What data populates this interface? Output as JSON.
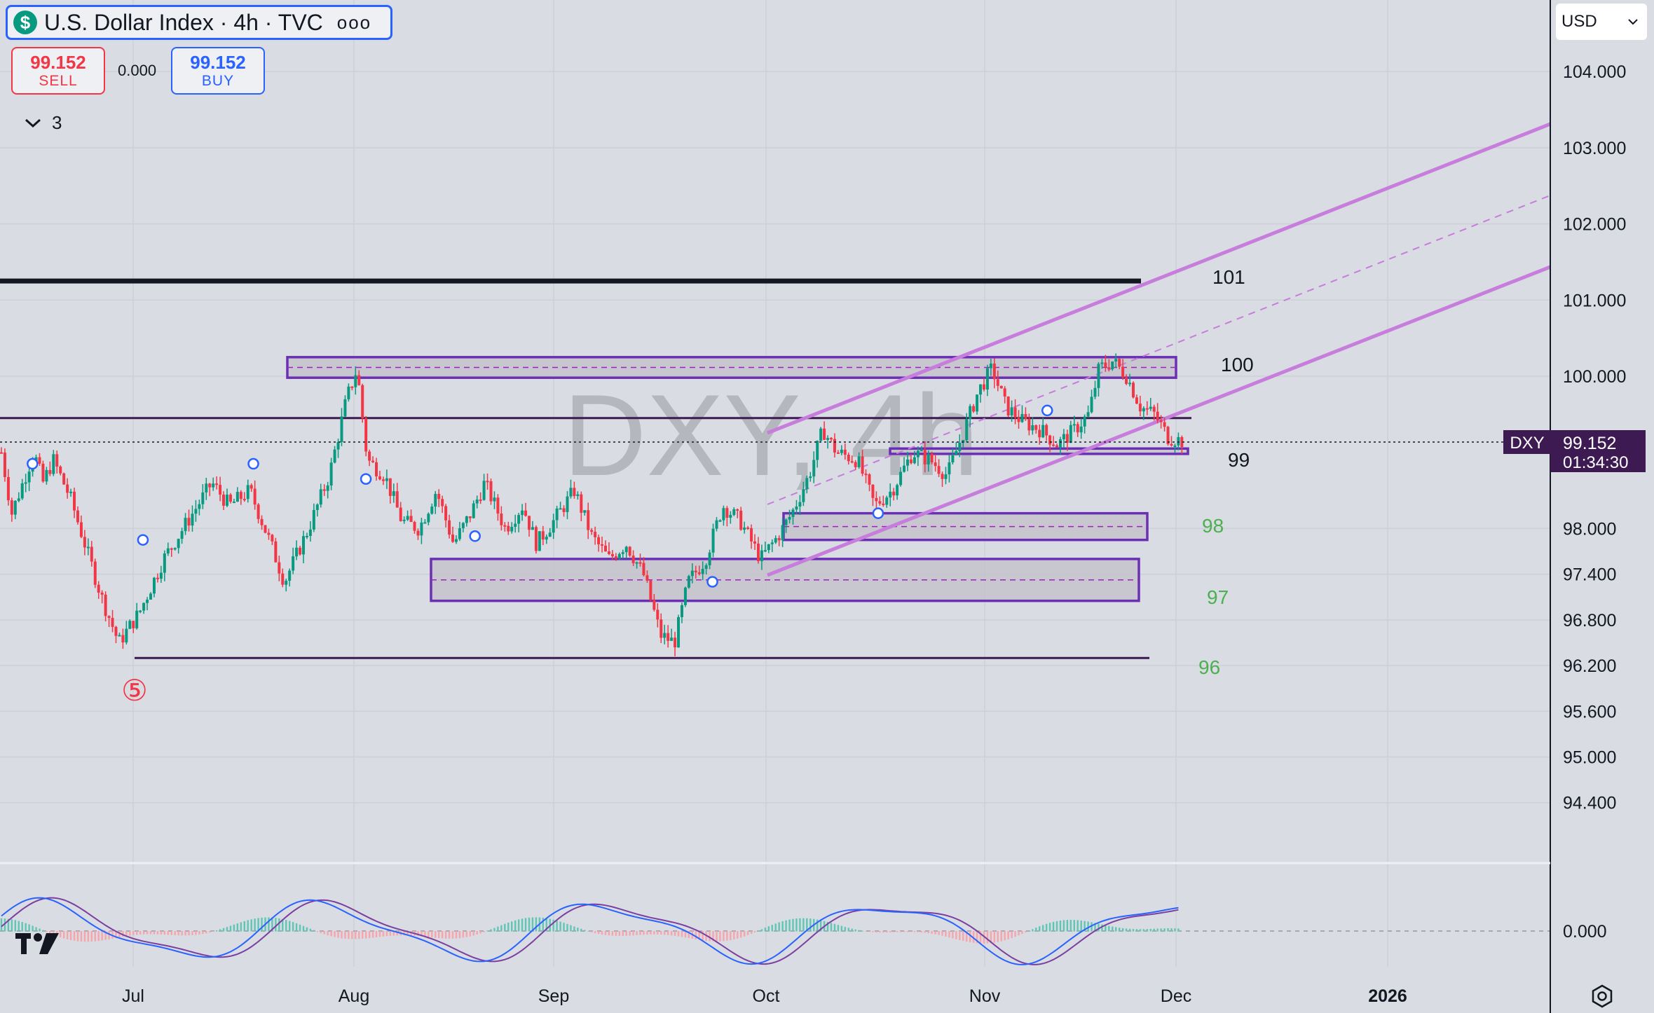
{
  "header": {
    "symbol_icon": "dollar-icon",
    "symbol_glyph": "$",
    "title": "U.S. Dollar Index · 4h · TVC",
    "more_glyph": "ooo"
  },
  "trade": {
    "sell_price": "99.152",
    "sell_label": "SELL",
    "spread": "0.000",
    "buy_price": "99.152",
    "buy_label": "BUY"
  },
  "indicators_toggle": {
    "icon": "chevron-down-icon",
    "count": "3"
  },
  "currency": "USD",
  "watermark": "DXY, 4h",
  "price_tag": {
    "symbol": "DXY",
    "price": "99.152",
    "countdown": "01:34:30"
  },
  "colors": {
    "background": "#d9dce2",
    "candle_up": "#089981",
    "candle_down": "#f23645",
    "zone_border": "#6b2fb3",
    "zone_fill": "#c4c2cb",
    "channel": "#c77ddb",
    "resistance": "#131722",
    "green_label": "#4caf50",
    "macd": "#2962ff",
    "signal": "#7b3fa0"
  },
  "elliott_label": "⑤",
  "chart_data": {
    "type": "candlestick",
    "timeframe": "4h",
    "ylim": [
      93.8,
      104.8
    ],
    "price_axis_labels": [
      "104.000",
      "103.000",
      "102.000",
      "101.000",
      "100.000",
      "98.000",
      "97.400",
      "96.800",
      "96.200",
      "95.600",
      "95.000",
      "94.400"
    ],
    "osc_axis_labels": [
      "0.000"
    ],
    "time_axis_labels": [
      "Jul",
      "Aug",
      "Sep",
      "Oct",
      "Nov",
      "Dec",
      "2026"
    ],
    "last_price": 99.152,
    "close_path": [
      {
        "t": 0.0,
        "p": 99.0
      },
      {
        "t": 0.15,
        "p": 98.2
      },
      {
        "t": 0.35,
        "p": 98.7
      },
      {
        "t": 0.47,
        "p": 99.0
      },
      {
        "t": 0.6,
        "p": 98.6
      },
      {
        "t": 0.75,
        "p": 98.9
      },
      {
        "t": 1.0,
        "p": 98.4
      },
      {
        "t": 1.45,
        "p": 97.1
      },
      {
        "t": 1.7,
        "p": 96.5
      },
      {
        "t": 2.0,
        "p": 96.9
      },
      {
        "t": 2.35,
        "p": 97.6
      },
      {
        "t": 2.7,
        "p": 98.1
      },
      {
        "t": 3.05,
        "p": 98.6
      },
      {
        "t": 3.3,
        "p": 98.3
      },
      {
        "t": 3.6,
        "p": 98.5
      },
      {
        "t": 3.9,
        "p": 97.8
      },
      {
        "t": 4.1,
        "p": 97.3
      },
      {
        "t": 4.45,
        "p": 98.0
      },
      {
        "t": 4.75,
        "p": 98.7
      },
      {
        "t": 5.0,
        "p": 99.7
      },
      {
        "t": 5.15,
        "p": 100.1
      },
      {
        "t": 5.3,
        "p": 98.9
      },
      {
        "t": 5.55,
        "p": 98.7
      },
      {
        "t": 5.8,
        "p": 98.1
      },
      {
        "t": 6.05,
        "p": 98.0
      },
      {
        "t": 6.3,
        "p": 98.5
      },
      {
        "t": 6.55,
        "p": 97.8
      },
      {
        "t": 6.8,
        "p": 98.2
      },
      {
        "t": 7.0,
        "p": 98.6
      },
      {
        "t": 7.3,
        "p": 98.0
      },
      {
        "t": 7.55,
        "p": 98.3
      },
      {
        "t": 7.75,
        "p": 97.8
      },
      {
        "t": 8.0,
        "p": 98.1
      },
      {
        "t": 8.3,
        "p": 98.5
      },
      {
        "t": 8.55,
        "p": 97.9
      },
      {
        "t": 8.8,
        "p": 97.6
      },
      {
        "t": 9.05,
        "p": 97.8
      },
      {
        "t": 9.3,
        "p": 97.4
      },
      {
        "t": 9.55,
        "p": 96.6
      },
      {
        "t": 9.75,
        "p": 96.5
      },
      {
        "t": 9.95,
        "p": 97.3
      },
      {
        "t": 10.2,
        "p": 97.6
      },
      {
        "t": 10.45,
        "p": 98.3
      },
      {
        "t": 10.7,
        "p": 98.1
      },
      {
        "t": 11.0,
        "p": 97.6
      },
      {
        "t": 11.25,
        "p": 97.9
      },
      {
        "t": 11.45,
        "p": 98.2
      },
      {
        "t": 11.7,
        "p": 98.7
      },
      {
        "t": 11.9,
        "p": 99.3
      },
      {
        "t": 12.1,
        "p": 99.0
      },
      {
        "t": 12.4,
        "p": 98.9
      },
      {
        "t": 12.65,
        "p": 98.3
      },
      {
        "t": 12.9,
        "p": 98.5
      },
      {
        "t": 13.2,
        "p": 99.0
      },
      {
        "t": 13.45,
        "p": 98.9
      },
      {
        "t": 13.7,
        "p": 98.7
      },
      {
        "t": 13.95,
        "p": 99.3
      },
      {
        "t": 14.15,
        "p": 99.8
      },
      {
        "t": 14.35,
        "p": 100.1
      },
      {
        "t": 14.55,
        "p": 99.6
      },
      {
        "t": 14.8,
        "p": 99.4
      },
      {
        "t": 15.05,
        "p": 99.3
      },
      {
        "t": 15.3,
        "p": 99.1
      },
      {
        "t": 15.55,
        "p": 99.3
      },
      {
        "t": 15.75,
        "p": 99.5
      },
      {
        "t": 15.9,
        "p": 100.1
      },
      {
        "t": 16.1,
        "p": 100.2
      },
      {
        "t": 16.3,
        "p": 100.0
      },
      {
        "t": 16.5,
        "p": 99.6
      },
      {
        "t": 16.7,
        "p": 99.5
      },
      {
        "t": 16.9,
        "p": 99.2
      },
      {
        "t": 17.1,
        "p": 99.152
      }
    ],
    "horizontal_levels": [
      {
        "price": 101.25,
        "label": "101"
      },
      {
        "price": 99.45,
        "label": ""
      },
      {
        "price": 96.3,
        "label": "96"
      }
    ],
    "zones": [
      {
        "top": 100.25,
        "bottom": 99.98,
        "label": "100"
      },
      {
        "top": 99.05,
        "bottom": 98.98,
        "label": "99"
      },
      {
        "top": 98.2,
        "bottom": 97.85,
        "label": "98"
      },
      {
        "top": 97.6,
        "bottom": 97.05,
        "label": "97"
      }
    ],
    "price_labels": [
      "101",
      "100",
      "99",
      "98",
      "97",
      "96"
    ]
  }
}
